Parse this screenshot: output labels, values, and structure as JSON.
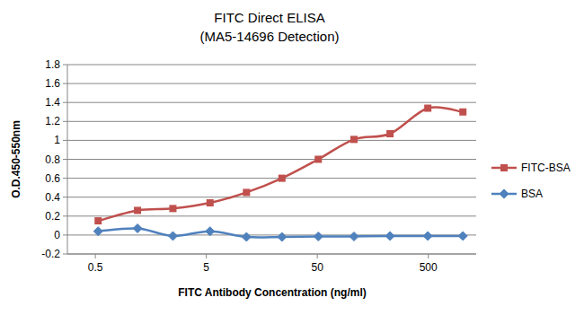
{
  "chart_data": {
    "type": "line",
    "title": "FITC Direct ELISA",
    "subtitle": "(MA5-14696 Detection)",
    "x_label": "FITC Antibody Concentration (ng/ml)",
    "y_label": "O.D.450-550nm",
    "x": [
      0.53,
      1.2,
      2.5,
      5.4,
      11.5,
      24,
      51,
      107,
      226,
      495,
      1025
    ],
    "series": [
      {
        "name": "FITC-BSA",
        "color": "#c0504d",
        "marker": "square",
        "values": [
          0.15,
          0.26,
          0.28,
          0.34,
          0.45,
          0.6,
          0.8,
          1.01,
          1.07,
          1.34,
          1.3
        ]
      },
      {
        "name": "BSA",
        "color": "#4f81bd",
        "marker": "diamond",
        "values": [
          0.04,
          0.07,
          -0.01,
          0.04,
          -0.02,
          -0.02,
          -0.015,
          -0.015,
          -0.01,
          -0.01,
          -0.01
        ]
      }
    ],
    "log": "x",
    "xlim": [
      0.28,
      1350
    ],
    "xticks": [
      0.5,
      5,
      50,
      500
    ],
    "ylim": [
      -0.2,
      1.8
    ],
    "yticks": [
      -0.2,
      0,
      0.2,
      0.4,
      0.6,
      0.8,
      1,
      1.2,
      1.4,
      1.6,
      1.8
    ],
    "grid": true,
    "legend": "right"
  }
}
